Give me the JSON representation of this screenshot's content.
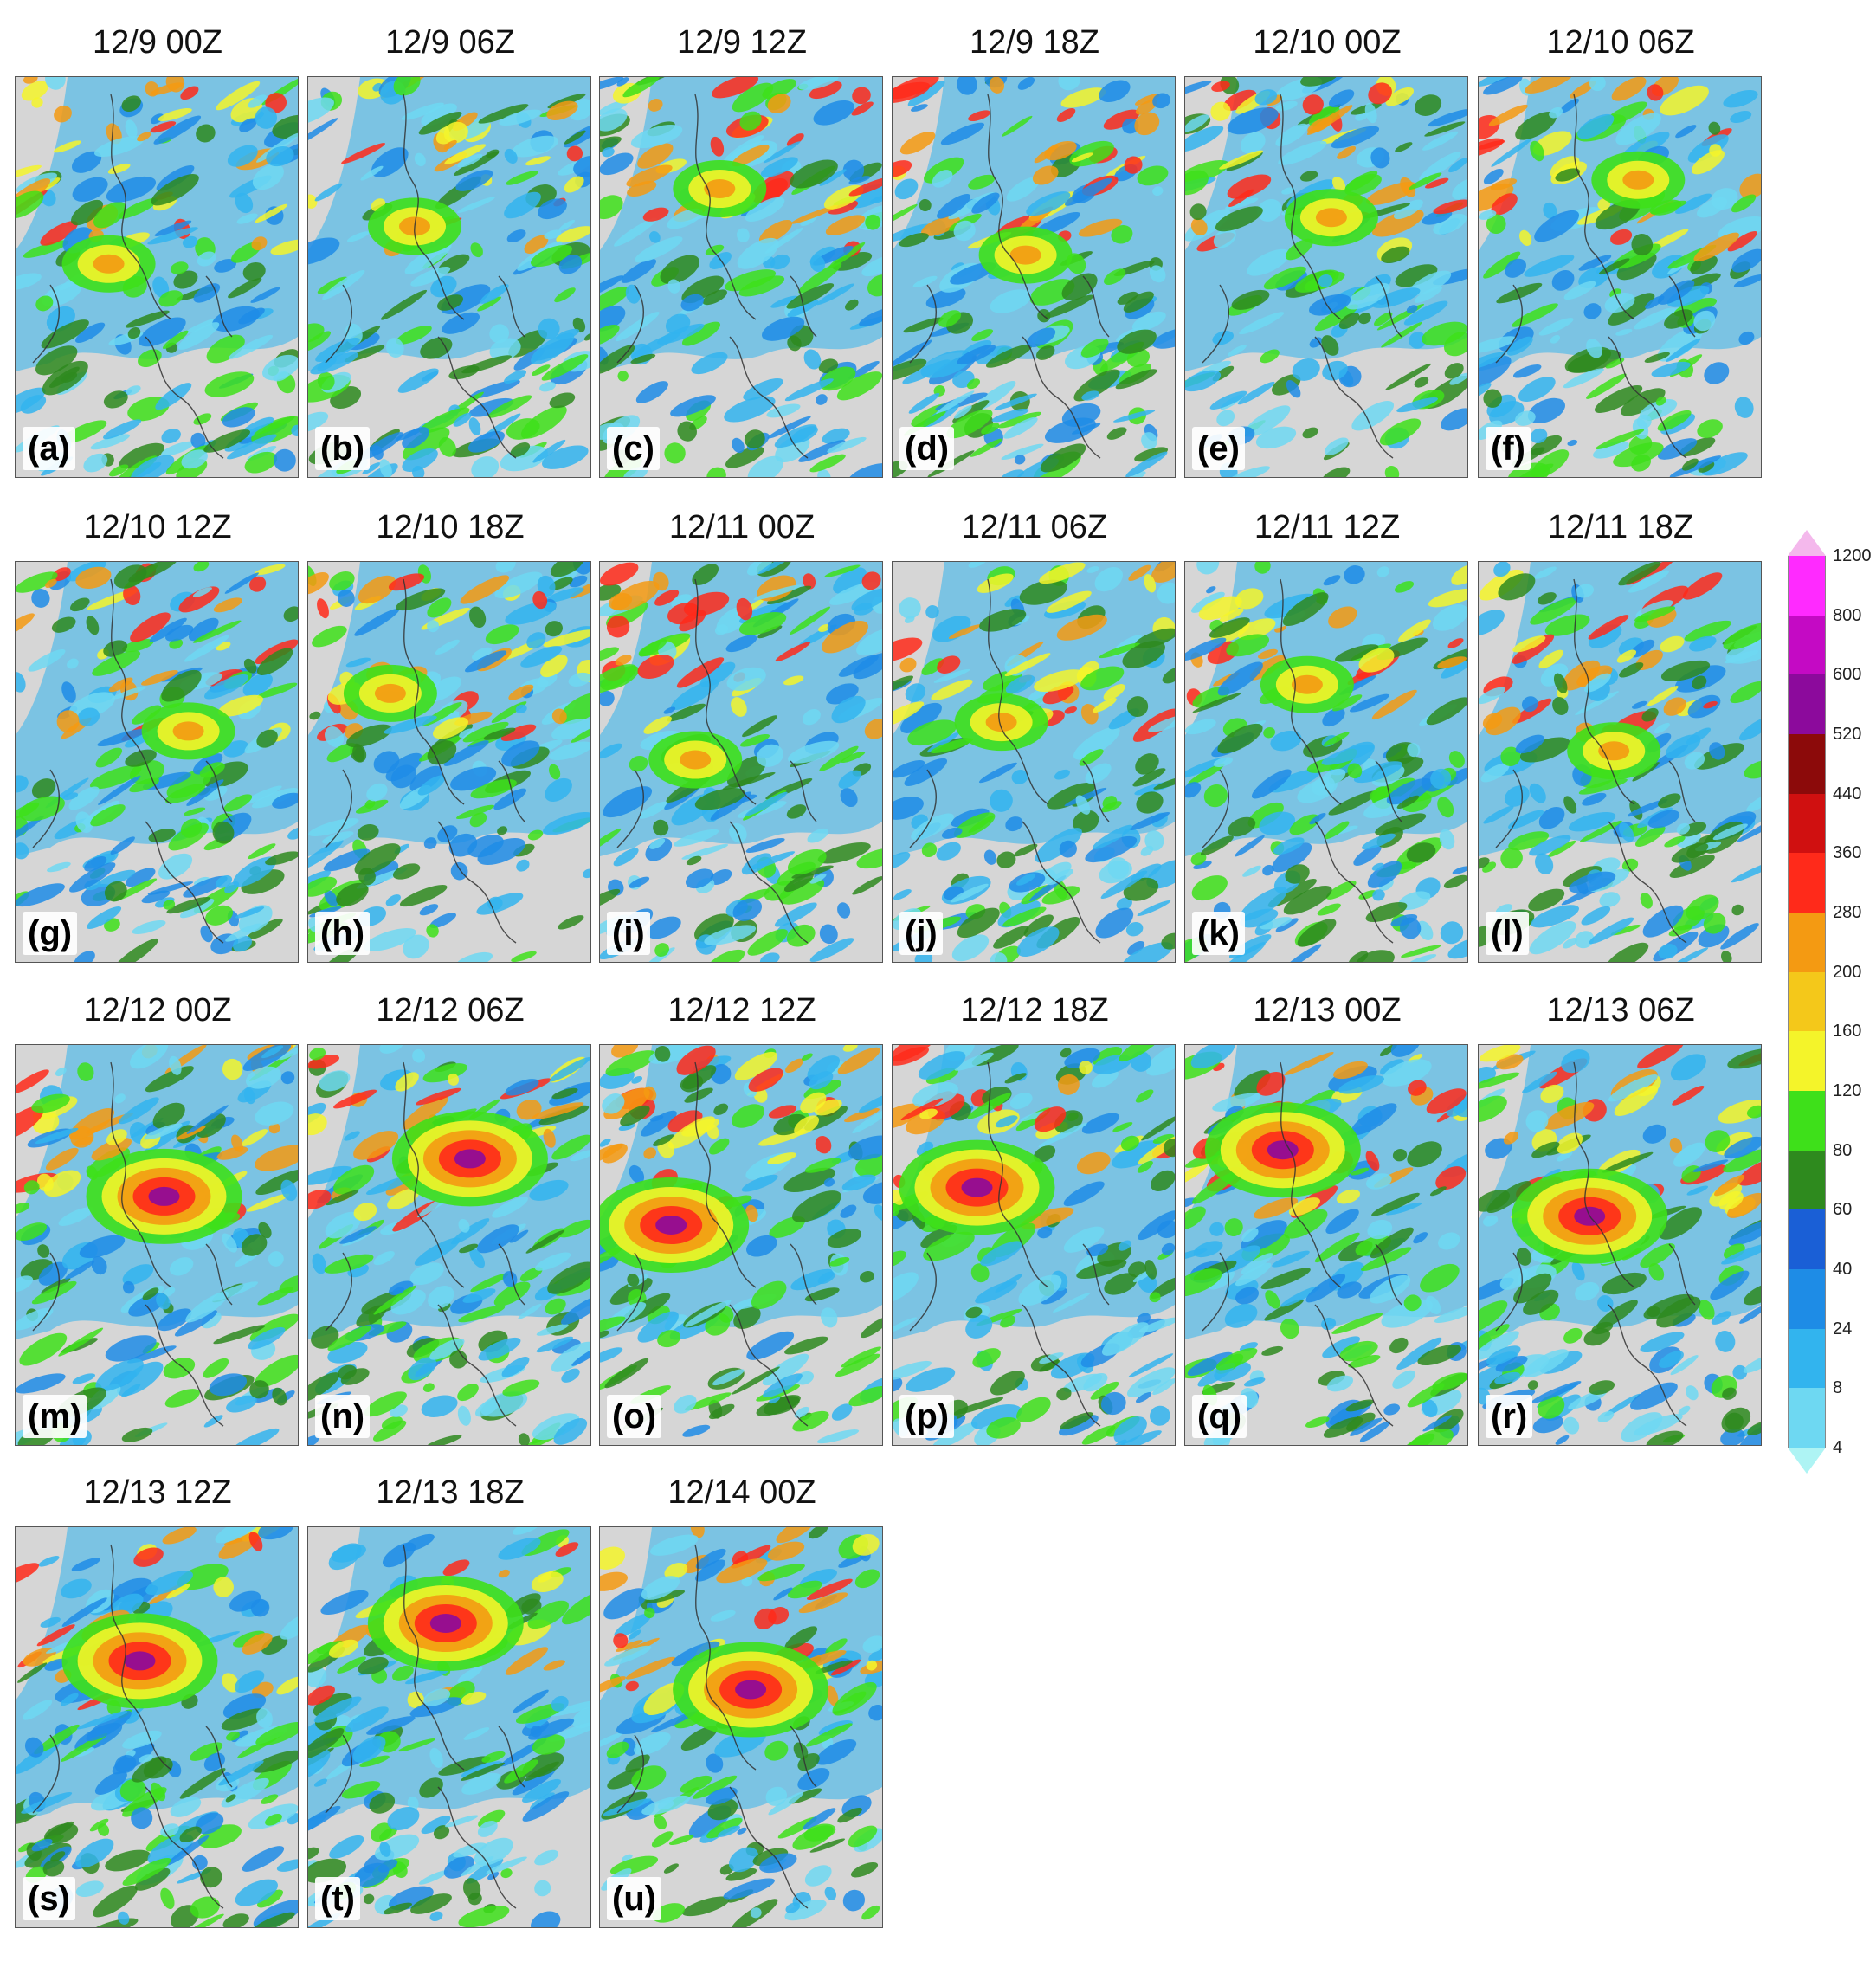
{
  "panels": [
    {
      "title": "12/9 00Z",
      "label": "(a)"
    },
    {
      "title": "12/9 06Z",
      "label": "(b)"
    },
    {
      "title": "12/9 12Z",
      "label": "(c)"
    },
    {
      "title": "12/9 18Z",
      "label": "(d)"
    },
    {
      "title": "12/10 00Z",
      "label": "(e)"
    },
    {
      "title": "12/10 06Z",
      "label": "(f)"
    },
    {
      "title": "12/10 12Z",
      "label": "(g)"
    },
    {
      "title": "12/10 18Z",
      "label": "(h)"
    },
    {
      "title": "12/11 00Z",
      "label": "(i)"
    },
    {
      "title": "12/11 06Z",
      "label": "(j)"
    },
    {
      "title": "12/11 12Z",
      "label": "(k)"
    },
    {
      "title": "12/11 18Z",
      "label": "(l)"
    },
    {
      "title": "12/12 00Z",
      "label": "(m)"
    },
    {
      "title": "12/12 06Z",
      "label": "(n)"
    },
    {
      "title": "12/12 12Z",
      "label": "(o)"
    },
    {
      "title": "12/12 18Z",
      "label": "(p)"
    },
    {
      "title": "12/13 00Z",
      "label": "(q)"
    },
    {
      "title": "12/13 06Z",
      "label": "(r)"
    },
    {
      "title": "12/13 12Z",
      "label": "(s)"
    },
    {
      "title": "12/13 18Z",
      "label": "(t)"
    },
    {
      "title": "12/14 00Z",
      "label": "(u)"
    }
  ],
  "colorbar": {
    "levels": [
      "4",
      "8",
      "24",
      "40",
      "60",
      "80",
      "120",
      "160",
      "200",
      "280",
      "360",
      "440",
      "520",
      "600",
      "800",
      "1200"
    ],
    "colors": [
      "#aef4f4",
      "#6ed8f2",
      "#32b4ee",
      "#1e8ce6",
      "#1a5fd6",
      "#2e8a1e",
      "#3ee01a",
      "#f4f42a",
      "#f4c81a",
      "#f49a12",
      "#ff2a1a",
      "#d01010",
      "#8c0a0a",
      "#8c0a9c",
      "#c40ac4",
      "#ff2aff",
      "#f4b8ec"
    ]
  }
}
